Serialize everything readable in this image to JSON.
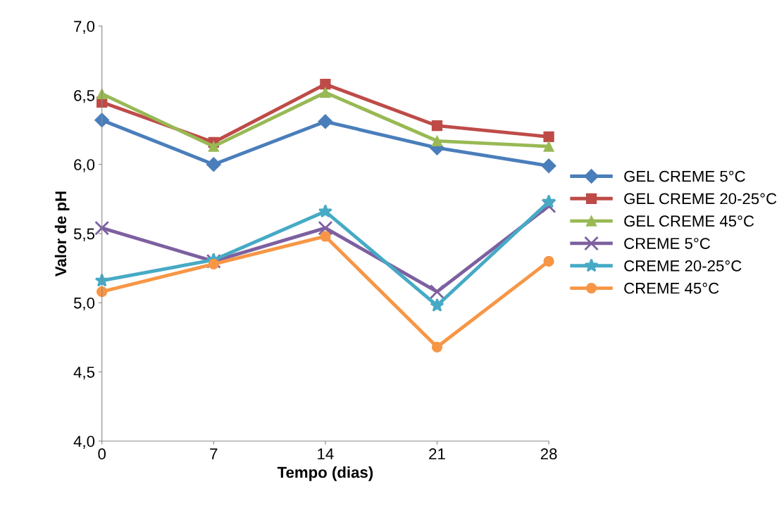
{
  "chart_data": {
    "type": "line",
    "xlabel": "Tempo (dias)",
    "ylabel": "Valor de pH",
    "x": [
      0,
      7,
      14,
      21,
      28
    ],
    "xlim": [
      0,
      28
    ],
    "xticks": [
      0,
      7,
      14,
      21,
      28
    ],
    "ylim": [
      4.0,
      7.0
    ],
    "yticks": [
      {
        "value": 4.0,
        "label": "4,0"
      },
      {
        "value": 4.5,
        "label": "4,5"
      },
      {
        "value": 5.0,
        "label": "5,0"
      },
      {
        "value": 5.5,
        "label": "5,5"
      },
      {
        "value": 6.0,
        "label": "6,0"
      },
      {
        "value": 6.5,
        "label": "6,5"
      },
      {
        "value": 7.0,
        "label": "7,0"
      }
    ],
    "grid": false,
    "legend": "right",
    "series": [
      {
        "name": "GEL CREME 5°C",
        "color": "#4a7ebb",
        "marker": "diamond",
        "values": [
          6.32,
          6.0,
          6.31,
          6.12,
          5.99
        ]
      },
      {
        "name": "GEL CREME 20-25°C",
        "color": "#be4b48",
        "marker": "square",
        "values": [
          6.45,
          6.16,
          6.58,
          6.28,
          6.2
        ]
      },
      {
        "name": "GEL CREME 45°C",
        "color": "#98b954",
        "marker": "triangle",
        "values": [
          6.51,
          6.13,
          6.52,
          6.17,
          6.13
        ]
      },
      {
        "name": "CREME 5°C",
        "color": "#7d60a0",
        "marker": "cross",
        "values": [
          5.54,
          5.3,
          5.54,
          5.08,
          5.7
        ]
      },
      {
        "name": "CREME 20-25°C",
        "color": "#46aac5",
        "marker": "star",
        "values": [
          5.16,
          5.31,
          5.66,
          4.98,
          5.73
        ]
      },
      {
        "name": "CREME 45°C",
        "color": "#f79646",
        "marker": "circle",
        "values": [
          5.08,
          5.28,
          5.48,
          4.68,
          5.3
        ]
      }
    ]
  }
}
